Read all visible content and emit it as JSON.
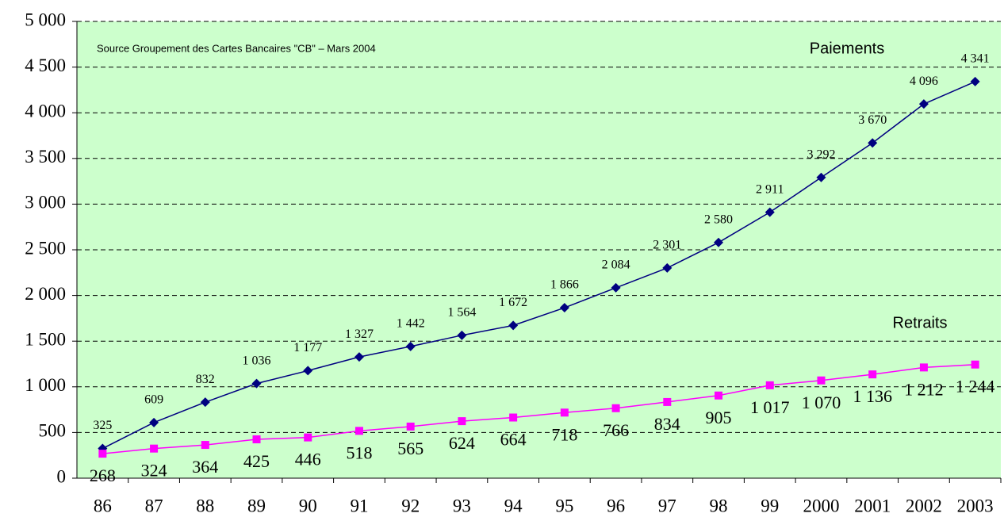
{
  "chart_data": {
    "type": "line",
    "annotation": "Source Groupement des Cartes Bancaires \"CB\" – Mars 2004",
    "categories": [
      "86",
      "87",
      "88",
      "89",
      "90",
      "91",
      "92",
      "93",
      "94",
      "95",
      "96",
      "97",
      "98",
      "99",
      "2000",
      "2001",
      "2002",
      "2003"
    ],
    "series": [
      {
        "name": "Paiements",
        "color": "#000080",
        "marker": "diamond",
        "values": [
          325,
          609,
          832,
          1036,
          1177,
          1327,
          1442,
          1564,
          1672,
          1866,
          2084,
          2301,
          2580,
          2911,
          3292,
          3670,
          4096,
          4341
        ],
        "value_labels": [
          "325",
          "609",
          "832",
          "1 036",
          "1 177",
          "1 327",
          "1 442",
          "1 564",
          "1 672",
          "1 866",
          "2 084",
          "2 301",
          "2 580",
          "2 911",
          "3 292",
          "3 670",
          "4 096",
          "4 341"
        ]
      },
      {
        "name": "Retraits",
        "color": "#ff00ff",
        "marker": "square",
        "values": [
          268,
          324,
          364,
          425,
          446,
          518,
          565,
          624,
          664,
          718,
          766,
          834,
          905,
          1017,
          1070,
          1136,
          1212,
          1244
        ],
        "value_labels": [
          "268",
          "324",
          "364",
          "425",
          "446",
          "518",
          "565",
          "624",
          "664",
          "718",
          "766",
          "834",
          "905",
          "1 017",
          "1 070",
          "1 136",
          "1 212",
          "1 244"
        ]
      }
    ],
    "ylim": [
      0,
      5000
    ],
    "yticks": [
      0,
      500,
      {
        "value": 1000,
        "label": "1 000"
      },
      {
        "value": 1500,
        "label": "1 500"
      },
      {
        "value": 2000,
        "label": "2 000"
      },
      {
        "value": 2500,
        "label": "2 500"
      },
      {
        "value": 3000,
        "label": "3 000"
      },
      {
        "value": 3500,
        "label": "3 500"
      },
      {
        "value": 4000,
        "label": "4 000"
      },
      {
        "value": 4500,
        "label": "4 500"
      },
      {
        "value": 5000,
        "label": "5 000"
      }
    ],
    "grid": true,
    "plot_background": "#ccffcc"
  }
}
